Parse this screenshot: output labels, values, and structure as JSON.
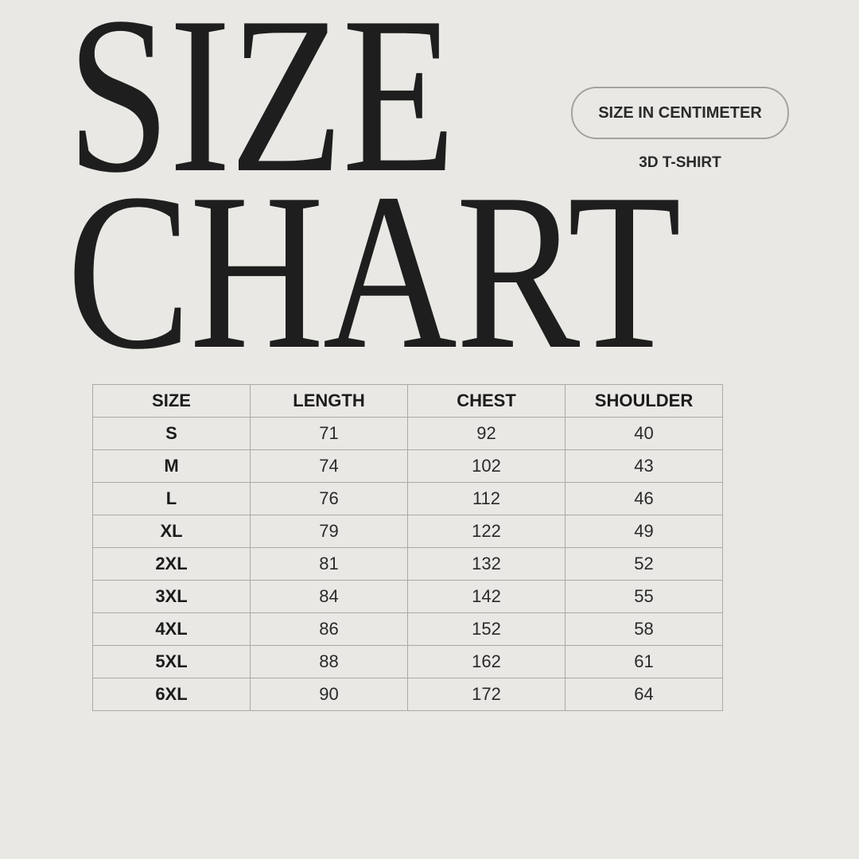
{
  "title": {
    "line1": "SIZE",
    "line2": "CHART"
  },
  "unit_badge": "SIZE IN CENTIMETER",
  "product": "3D T-SHIRT",
  "table": {
    "headers": [
      "SIZE",
      "LENGTH",
      "CHEST",
      "SHOULDER"
    ],
    "rows": [
      [
        "S",
        "71",
        "92",
        "40"
      ],
      [
        "M",
        "74",
        "102",
        "43"
      ],
      [
        "L",
        "76",
        "112",
        "46"
      ],
      [
        "XL",
        "79",
        "122",
        "49"
      ],
      [
        "2XL",
        "81",
        "132",
        "52"
      ],
      [
        "3XL",
        "84",
        "142",
        "55"
      ],
      [
        "4XL",
        "86",
        "152",
        "58"
      ],
      [
        "5XL",
        "88",
        "162",
        "61"
      ],
      [
        "6XL",
        "90",
        "172",
        "64"
      ]
    ]
  },
  "colors": {
    "background": "#e9e8e4",
    "text": "#1e1e1e",
    "border": "#aaa9a6"
  }
}
